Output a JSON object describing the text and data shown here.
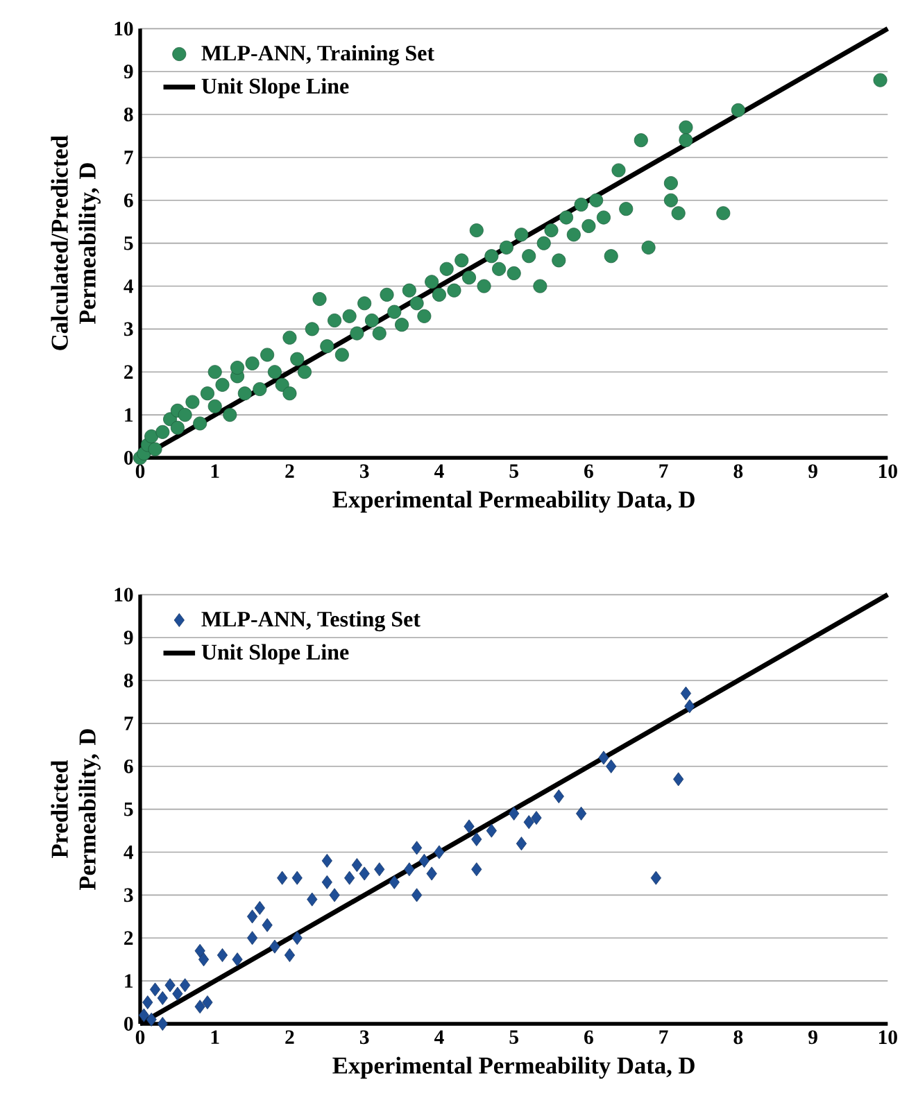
{
  "chart_data": [
    {
      "type": "scatter",
      "xlabel": "Experimental Permeability Data, D",
      "ylabel": "Calculated/Predicted Permeability, D",
      "xlim": [
        0,
        10
      ],
      "ylim": [
        0,
        10
      ],
      "xticks": [
        0,
        1,
        2,
        3,
        4,
        5,
        6,
        7,
        8,
        9,
        10
      ],
      "yticks": [
        0,
        1,
        2,
        3,
        4,
        5,
        6,
        7,
        8,
        9,
        10
      ],
      "grid": "y",
      "legend": "top left",
      "series": [
        {
          "name": "MLP-ANN, Training Set",
          "marker": "circle",
          "color": "#2e8b5a",
          "x": [
            0,
            0.05,
            0.1,
            0.15,
            0.2,
            0.3,
            0.4,
            0.5,
            0.5,
            0.6,
            0.7,
            0.8,
            0.9,
            1.0,
            1.0,
            1.1,
            1.2,
            1.3,
            1.3,
            1.4,
            1.5,
            1.6,
            1.7,
            1.8,
            1.9,
            2.0,
            2.0,
            2.1,
            2.2,
            2.3,
            2.4,
            2.5,
            2.6,
            2.7,
            2.8,
            2.9,
            3.0,
            3.1,
            3.2,
            3.3,
            3.4,
            3.5,
            3.6,
            3.7,
            3.8,
            3.9,
            4.0,
            4.1,
            4.2,
            4.3,
            4.4,
            4.5,
            4.6,
            4.7,
            4.8,
            4.9,
            5.0,
            5.1,
            5.2,
            5.35,
            5.4,
            5.5,
            5.6,
            5.7,
            5.8,
            5.9,
            6.0,
            6.1,
            6.2,
            6.3,
            6.4,
            6.5,
            6.7,
            6.8,
            7.1,
            7.1,
            7.2,
            7.3,
            7.3,
            7.8,
            8.0,
            9.9
          ],
          "values": [
            0,
            0.1,
            0.3,
            0.5,
            0.2,
            0.6,
            0.9,
            0.7,
            1.1,
            1.0,
            1.3,
            0.8,
            1.5,
            1.2,
            2.0,
            1.7,
            1.0,
            1.9,
            2.1,
            1.5,
            2.2,
            1.6,
            2.4,
            2.0,
            1.7,
            2.8,
            1.5,
            2.3,
            2.0,
            3.0,
            3.7,
            2.6,
            3.2,
            2.4,
            3.3,
            2.9,
            3.6,
            3.2,
            2.9,
            3.8,
            3.4,
            3.1,
            3.9,
            3.6,
            3.3,
            4.1,
            3.8,
            4.4,
            3.9,
            4.6,
            4.2,
            5.3,
            4.0,
            4.7,
            4.4,
            4.9,
            4.3,
            5.2,
            4.7,
            4.0,
            5.0,
            5.3,
            4.6,
            5.6,
            5.2,
            5.9,
            5.4,
            6.0,
            5.6,
            4.7,
            6.7,
            5.8,
            7.4,
            4.9,
            6.4,
            6.0,
            5.7,
            7.7,
            7.4,
            5.7,
            8.1,
            8.8
          ]
        },
        {
          "name": "Unit Slope Line",
          "type": "line",
          "marker": "none",
          "line_style": "solid",
          "color": "#000000",
          "x": [
            0,
            10
          ],
          "values": [
            0,
            10
          ]
        }
      ]
    },
    {
      "type": "scatter",
      "xlabel": "Experimental Permeability Data, D",
      "ylabel": "Predicted Permeability, D",
      "xlim": [
        0,
        10
      ],
      "ylim": [
        0,
        10
      ],
      "xticks": [
        0,
        1,
        2,
        3,
        4,
        5,
        6,
        7,
        8,
        9,
        10
      ],
      "yticks": [
        0,
        1,
        2,
        3,
        4,
        5,
        6,
        7,
        8,
        9,
        10
      ],
      "grid": "y",
      "legend": "top left",
      "series": [
        {
          "name": "MLP-ANN, Testing Set",
          "marker": "diamond",
          "color": "#1f4e96",
          "x": [
            0.05,
            0.1,
            0.15,
            0.2,
            0.3,
            0.3,
            0.4,
            0.5,
            0.6,
            0.8,
            0.9,
            0.8,
            0.85,
            1.1,
            1.3,
            1.5,
            1.5,
            1.6,
            1.7,
            1.8,
            1.9,
            2.0,
            2.1,
            2.1,
            2.3,
            2.5,
            2.5,
            2.6,
            2.8,
            2.9,
            3.0,
            3.2,
            3.4,
            3.6,
            3.7,
            3.7,
            3.8,
            3.9,
            4.0,
            4.4,
            4.5,
            4.5,
            4.7,
            5.0,
            5.1,
            5.2,
            5.3,
            5.6,
            5.9,
            6.2,
            6.3,
            6.9,
            7.2,
            7.3,
            7.35
          ],
          "values": [
            0.2,
            0.5,
            0.1,
            0.8,
            0.6,
            0.0,
            0.9,
            0.7,
            0.9,
            0.4,
            0.5,
            1.7,
            1.5,
            1.6,
            1.5,
            2.5,
            2.0,
            2.7,
            2.3,
            1.8,
            3.4,
            1.6,
            3.4,
            2.0,
            2.9,
            3.3,
            3.8,
            3.0,
            3.4,
            3.7,
            3.5,
            3.6,
            3.3,
            3.6,
            4.1,
            3.0,
            3.8,
            3.5,
            4.0,
            4.6,
            3.6,
            4.3,
            4.5,
            4.9,
            4.2,
            4.7,
            4.8,
            5.3,
            4.9,
            6.2,
            6.0,
            3.4,
            5.7,
            7.7,
            7.4
          ]
        },
        {
          "name": "Unit Slope Line",
          "type": "line",
          "marker": "none",
          "line_style": "solid",
          "color": "#000000",
          "x": [
            0,
            10
          ],
          "values": [
            0,
            10
          ]
        }
      ]
    }
  ]
}
